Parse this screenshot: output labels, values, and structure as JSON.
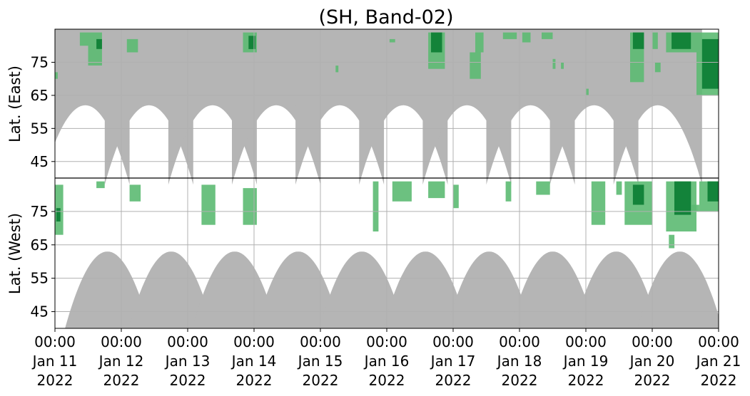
{
  "chart_data": {
    "type": "heatmap",
    "title": "(SH, Band-02)",
    "ylabel_upper": "Lat. (East)",
    "ylabel_lower": "Lat. (West)",
    "x_range": [
      "2022-01-11 00:00",
      "2022-01-21 00:00"
    ],
    "x_ticks": [
      {
        "time": "00:00",
        "date": "Jan 11",
        "year": "2022"
      },
      {
        "time": "00:00",
        "date": "Jan 12",
        "year": "2022"
      },
      {
        "time": "00:00",
        "date": "Jan 13",
        "year": "2022"
      },
      {
        "time": "00:00",
        "date": "Jan 14",
        "year": "2022"
      },
      {
        "time": "00:00",
        "date": "Jan 15",
        "year": "2022"
      },
      {
        "time": "00:00",
        "date": "Jan 16",
        "year": "2022"
      },
      {
        "time": "00:00",
        "date": "Jan 17",
        "year": "2022"
      },
      {
        "time": "00:00",
        "date": "Jan 18",
        "year": "2022"
      },
      {
        "time": "00:00",
        "date": "Jan 19",
        "year": "2022"
      },
      {
        "time": "00:00",
        "date": "Jan 20",
        "year": "2022"
      },
      {
        "time": "00:00",
        "date": "Jan 21",
        "year": "2022"
      }
    ],
    "y_ticks_upper": [
      "45",
      "55",
      "65",
      "75"
    ],
    "y_ticks_lower": [
      "75",
      "65",
      "55",
      "45"
    ],
    "y_range_upper": [
      40,
      85
    ],
    "y_range_lower": [
      85,
      40
    ],
    "grid": true,
    "colors": {
      "no_data": "#b5b5b5",
      "detection_light": "#5cba72",
      "detection_dark": "#0f7f36",
      "grid": "#b0b0b0",
      "divider": "#000000"
    },
    "no_data_lobes_upper": [
      {
        "center": "2022-01-11 11:00",
        "min_lat": 62
      },
      {
        "center": "2022-01-12 10:00",
        "min_lat": 62
      },
      {
        "center": "2022-01-13 09:00",
        "min_lat": 62
      },
      {
        "center": "2022-01-14 08:00",
        "min_lat": 62
      },
      {
        "center": "2022-01-15 07:00",
        "min_lat": 62
      },
      {
        "center": "2022-01-16 06:00",
        "min_lat": 62
      },
      {
        "center": "2022-01-17 05:00",
        "min_lat": 62
      },
      {
        "center": "2022-01-18 04:00",
        "min_lat": 62
      },
      {
        "center": "2022-01-19 03:00",
        "min_lat": 62
      },
      {
        "center": "2022-01-20 02:00",
        "min_lat": 62
      }
    ],
    "no_data_lobes_lower": [
      {
        "center": "2022-01-11 19:00",
        "min_lat": 63
      },
      {
        "center": "2022-01-12 18:00",
        "min_lat": 63
      },
      {
        "center": "2022-01-13 17:00",
        "min_lat": 63
      },
      {
        "center": "2022-01-14 16:00",
        "min_lat": 63
      },
      {
        "center": "2022-01-15 15:00",
        "min_lat": 63
      },
      {
        "center": "2022-01-16 14:00",
        "min_lat": 63
      },
      {
        "center": "2022-01-17 13:00",
        "min_lat": 63
      },
      {
        "center": "2022-01-18 12:00",
        "min_lat": 63
      },
      {
        "center": "2022-01-19 11:00",
        "min_lat": 63
      },
      {
        "center": "2022-01-20 10:00",
        "min_lat": 63
      }
    ],
    "detections": [
      {
        "hemisphere": "east",
        "start": "2022-01-11 00:00",
        "end": "2022-01-11 01:00",
        "lat_min": 70,
        "lat_max": 72,
        "intensity": "light"
      },
      {
        "hemisphere": "west",
        "start": "2022-01-11 00:00",
        "end": "2022-01-11 03:00",
        "lat_min": 68,
        "lat_max": 83,
        "intensity": "light"
      },
      {
        "hemisphere": "west",
        "start": "2022-01-11 00:30",
        "end": "2022-01-11 02:00",
        "lat_min": 72,
        "lat_max": 76,
        "intensity": "dark"
      },
      {
        "hemisphere": "east",
        "start": "2022-01-11 09:00",
        "end": "2022-01-11 12:00",
        "lat_min": 80,
        "lat_max": 84,
        "intensity": "light"
      },
      {
        "hemisphere": "east",
        "start": "2022-01-11 12:00",
        "end": "2022-01-11 17:00",
        "lat_min": 74,
        "lat_max": 84,
        "intensity": "light"
      },
      {
        "hemisphere": "east",
        "start": "2022-01-11 15:00",
        "end": "2022-01-11 17:00",
        "lat_min": 79,
        "lat_max": 82,
        "intensity": "dark"
      },
      {
        "hemisphere": "west",
        "start": "2022-01-11 15:00",
        "end": "2022-01-11 18:00",
        "lat_min": 82,
        "lat_max": 84,
        "intensity": "light"
      },
      {
        "hemisphere": "east",
        "start": "2022-01-12 02:00",
        "end": "2022-01-12 06:00",
        "lat_min": 78,
        "lat_max": 82,
        "intensity": "light"
      },
      {
        "hemisphere": "west",
        "start": "2022-01-12 03:00",
        "end": "2022-01-12 07:00",
        "lat_min": 78,
        "lat_max": 83,
        "intensity": "light"
      },
      {
        "hemisphere": "west",
        "start": "2022-01-13 05:00",
        "end": "2022-01-13 10:00",
        "lat_min": 71,
        "lat_max": 83,
        "intensity": "light"
      },
      {
        "hemisphere": "east",
        "start": "2022-01-13 20:00",
        "end": "2022-01-14 01:00",
        "lat_min": 78,
        "lat_max": 84,
        "intensity": "light"
      },
      {
        "hemisphere": "east",
        "start": "2022-01-13 22:00",
        "end": "2022-01-14 00:30",
        "lat_min": 79,
        "lat_max": 83,
        "intensity": "dark"
      },
      {
        "hemisphere": "west",
        "start": "2022-01-13 20:00",
        "end": "2022-01-14 01:00",
        "lat_min": 71,
        "lat_max": 82,
        "intensity": "light"
      },
      {
        "hemisphere": "east",
        "start": "2022-01-15 05:30",
        "end": "2022-01-15 06:30",
        "lat_min": 72,
        "lat_max": 74,
        "intensity": "light"
      },
      {
        "hemisphere": "west",
        "start": "2022-01-15 19:00",
        "end": "2022-01-15 21:00",
        "lat_min": 69,
        "lat_max": 84,
        "intensity": "light"
      },
      {
        "hemisphere": "east",
        "start": "2022-01-16 01:00",
        "end": "2022-01-16 03:00",
        "lat_min": 81,
        "lat_max": 82,
        "intensity": "light"
      },
      {
        "hemisphere": "west",
        "start": "2022-01-16 02:00",
        "end": "2022-01-16 09:00",
        "lat_min": 78,
        "lat_max": 84,
        "intensity": "light"
      },
      {
        "hemisphere": "east",
        "start": "2022-01-16 15:00",
        "end": "2022-01-16 21:00",
        "lat_min": 73,
        "lat_max": 84,
        "intensity": "light"
      },
      {
        "hemisphere": "east",
        "start": "2022-01-16 16:00",
        "end": "2022-01-16 20:00",
        "lat_min": 78,
        "lat_max": 84,
        "intensity": "dark"
      },
      {
        "hemisphere": "west",
        "start": "2022-01-16 15:00",
        "end": "2022-01-16 21:00",
        "lat_min": 79,
        "lat_max": 84,
        "intensity": "light"
      },
      {
        "hemisphere": "west",
        "start": "2022-01-17 00:00",
        "end": "2022-01-17 02:00",
        "lat_min": 76,
        "lat_max": 83,
        "intensity": "light"
      },
      {
        "hemisphere": "east",
        "start": "2022-01-17 06:00",
        "end": "2022-01-17 10:00",
        "lat_min": 70,
        "lat_max": 78,
        "intensity": "light"
      },
      {
        "hemisphere": "east",
        "start": "2022-01-17 08:00",
        "end": "2022-01-17 11:00",
        "lat_min": 78,
        "lat_max": 84,
        "intensity": "light"
      },
      {
        "hemisphere": "east",
        "start": "2022-01-17 18:00",
        "end": "2022-01-17 23:00",
        "lat_min": 82,
        "lat_max": 84,
        "intensity": "light"
      },
      {
        "hemisphere": "west",
        "start": "2022-01-17 19:00",
        "end": "2022-01-17 21:00",
        "lat_min": 78,
        "lat_max": 84,
        "intensity": "light"
      },
      {
        "hemisphere": "east",
        "start": "2022-01-18 01:00",
        "end": "2022-01-18 04:00",
        "lat_min": 81,
        "lat_max": 84,
        "intensity": "light"
      },
      {
        "hemisphere": "east",
        "start": "2022-01-18 08:00",
        "end": "2022-01-18 12:00",
        "lat_min": 82,
        "lat_max": 84,
        "intensity": "light"
      },
      {
        "hemisphere": "west",
        "start": "2022-01-18 06:00",
        "end": "2022-01-18 11:00",
        "lat_min": 80,
        "lat_max": 84,
        "intensity": "light"
      },
      {
        "hemisphere": "east",
        "start": "2022-01-18 12:00",
        "end": "2022-01-18 13:00",
        "lat_min": 73,
        "lat_max": 76,
        "intensity": "light"
      },
      {
        "hemisphere": "east",
        "start": "2022-01-18 15:00",
        "end": "2022-01-18 16:00",
        "lat_min": 73,
        "lat_max": 75,
        "intensity": "light"
      },
      {
        "hemisphere": "east",
        "start": "2022-01-19 00:00",
        "end": "2022-01-19 01:00",
        "lat_min": 65,
        "lat_max": 67,
        "intensity": "light"
      },
      {
        "hemisphere": "west",
        "start": "2022-01-19 02:00",
        "end": "2022-01-19 07:00",
        "lat_min": 71,
        "lat_max": 84,
        "intensity": "light"
      },
      {
        "hemisphere": "west",
        "start": "2022-01-19 11:00",
        "end": "2022-01-19 13:00",
        "lat_min": 80,
        "lat_max": 84,
        "intensity": "light"
      },
      {
        "hemisphere": "east",
        "start": "2022-01-19 16:00",
        "end": "2022-01-19 21:00",
        "lat_min": 69,
        "lat_max": 84,
        "intensity": "light"
      },
      {
        "hemisphere": "east",
        "start": "2022-01-19 17:00",
        "end": "2022-01-19 21:00",
        "lat_min": 79,
        "lat_max": 84,
        "intensity": "dark"
      },
      {
        "hemisphere": "west",
        "start": "2022-01-19 14:00",
        "end": "2022-01-20 00:00",
        "lat_min": 71,
        "lat_max": 84,
        "intensity": "light"
      },
      {
        "hemisphere": "west",
        "start": "2022-01-19 17:00",
        "end": "2022-01-19 21:00",
        "lat_min": 77,
        "lat_max": 83,
        "intensity": "dark"
      },
      {
        "hemisphere": "east",
        "start": "2022-01-20 00:00",
        "end": "2022-01-20 02:00",
        "lat_min": 79,
        "lat_max": 84,
        "intensity": "light"
      },
      {
        "hemisphere": "east",
        "start": "2022-01-20 01:00",
        "end": "2022-01-20 03:00",
        "lat_min": 72,
        "lat_max": 75,
        "intensity": "light"
      },
      {
        "hemisphere": "east",
        "start": "2022-01-20 05:00",
        "end": "2022-01-20 16:00",
        "lat_min": 78,
        "lat_max": 84,
        "intensity": "light"
      },
      {
        "hemisphere": "east",
        "start": "2022-01-20 07:00",
        "end": "2022-01-20 14:00",
        "lat_min": 79,
        "lat_max": 84,
        "intensity": "dark"
      },
      {
        "hemisphere": "west",
        "start": "2022-01-20 05:00",
        "end": "2022-01-20 16:00",
        "lat_min": 69,
        "lat_max": 84,
        "intensity": "light"
      },
      {
        "hemisphere": "west",
        "start": "2022-01-20 08:00",
        "end": "2022-01-20 14:00",
        "lat_min": 74,
        "lat_max": 84,
        "intensity": "dark"
      },
      {
        "hemisphere": "west",
        "start": "2022-01-20 06:00",
        "end": "2022-01-20 08:00",
        "lat_min": 64,
        "lat_max": 68,
        "intensity": "light"
      },
      {
        "hemisphere": "east",
        "start": "2022-01-20 16:00",
        "end": "2022-01-21 00:00",
        "lat_min": 65,
        "lat_max": 84,
        "intensity": "light"
      },
      {
        "hemisphere": "east",
        "start": "2022-01-20 18:00",
        "end": "2022-01-21 00:00",
        "lat_min": 67,
        "lat_max": 82,
        "intensity": "dark"
      },
      {
        "hemisphere": "west",
        "start": "2022-01-20 17:00",
        "end": "2022-01-21 00:00",
        "lat_min": 75,
        "lat_max": 84,
        "intensity": "light"
      },
      {
        "hemisphere": "west",
        "start": "2022-01-20 20:00",
        "end": "2022-01-21 00:00",
        "lat_min": 78,
        "lat_max": 84,
        "intensity": "dark"
      },
      {
        "hemisphere": "west",
        "start": "2022-01-20 14:00",
        "end": "2022-01-20 17:00",
        "lat_min": 75,
        "lat_max": 77,
        "intensity": "light"
      }
    ]
  }
}
